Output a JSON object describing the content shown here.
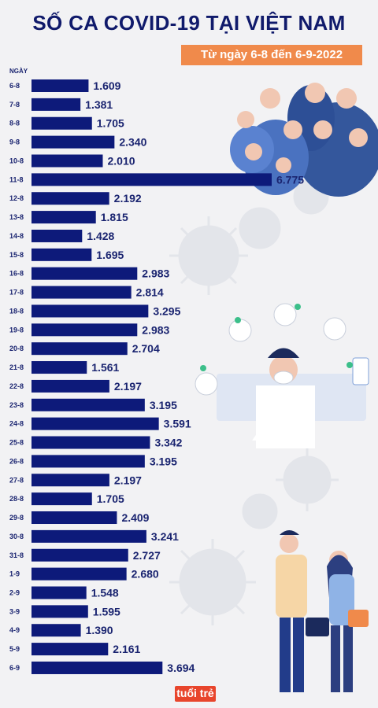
{
  "header": {
    "title": "SỐ CA COVID-19 TẠI VIỆT NAM",
    "subtitle": "Từ ngày 6-8 đến 6-9-2022"
  },
  "colors": {
    "bar": "#0d1a7a",
    "label": "#1a2470",
    "subtitle_bg": "#f08a4b",
    "background": "#f2f2f4"
  },
  "brand_logo_text": "tuổi trẻ",
  "chart_data": {
    "type": "bar",
    "orientation": "horizontal",
    "title": "SỐ CA COVID-19 TẠI VIỆT NAM",
    "xlabel": "",
    "ylabel": "NGÀY",
    "categories": [
      "6-8",
      "7-8",
      "8-8",
      "9-8",
      "10-8",
      "11-8",
      "12-8",
      "13-8",
      "14-8",
      "15-8",
      "16-8",
      "17-8",
      "18-8",
      "19-8",
      "20-8",
      "21-8",
      "22-8",
      "23-8",
      "24-8",
      "25-8",
      "26-8",
      "27-8",
      "28-8",
      "29-8",
      "30-8",
      "31-8",
      "1-9",
      "2-9",
      "3-9",
      "4-9",
      "5-9",
      "6-9"
    ],
    "values": [
      1609,
      1381,
      1705,
      2340,
      2010,
      6775,
      2192,
      1815,
      1428,
      1695,
      2983,
      2814,
      3295,
      2983,
      2704,
      1561,
      2197,
      3195,
      3591,
      3342,
      3195,
      2197,
      1705,
      2409,
      3241,
      2727,
      2680,
      1548,
      1595,
      1390,
      2161,
      3694
    ],
    "value_labels": [
      "1.609",
      "1.381",
      "1.705",
      "2.340",
      "2.010",
      "6.775",
      "2.192",
      "1.815",
      "1.428",
      "1.695",
      "2.983",
      "2.814",
      "3.295",
      "2.983",
      "2.704",
      "1.561",
      "2.197",
      "3.195",
      "3.591",
      "3.342",
      "3.195",
      "2.197",
      "1.705",
      "2.409",
      "3.241",
      "2.727",
      "2.680",
      "1.548",
      "1.595",
      "1.390",
      "2.161",
      "3.694"
    ],
    "xlim": [
      0,
      6775
    ],
    "grid": false,
    "legend": "none"
  }
}
